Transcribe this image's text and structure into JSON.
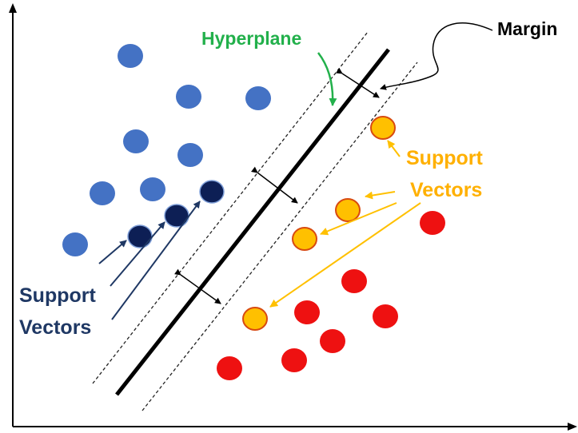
{
  "labels": {
    "hyperplane": "Hyperplane",
    "margin": "Margin",
    "support_vectors_left": [
      "Support",
      "Vectors"
    ],
    "support_vectors_right": [
      "Support",
      "Vectors"
    ]
  },
  "colors": {
    "class_blue": "#4472c4",
    "support_blue": "#0d1f55",
    "class_red": "#ee1111",
    "support_orange": "#ffc000",
    "support_orange_edge": "#d84a10",
    "hyperplane_label": "#22b04b",
    "support_left_label": "#1f3864",
    "support_right_label": "#ffb000",
    "line": "#000000"
  }
}
